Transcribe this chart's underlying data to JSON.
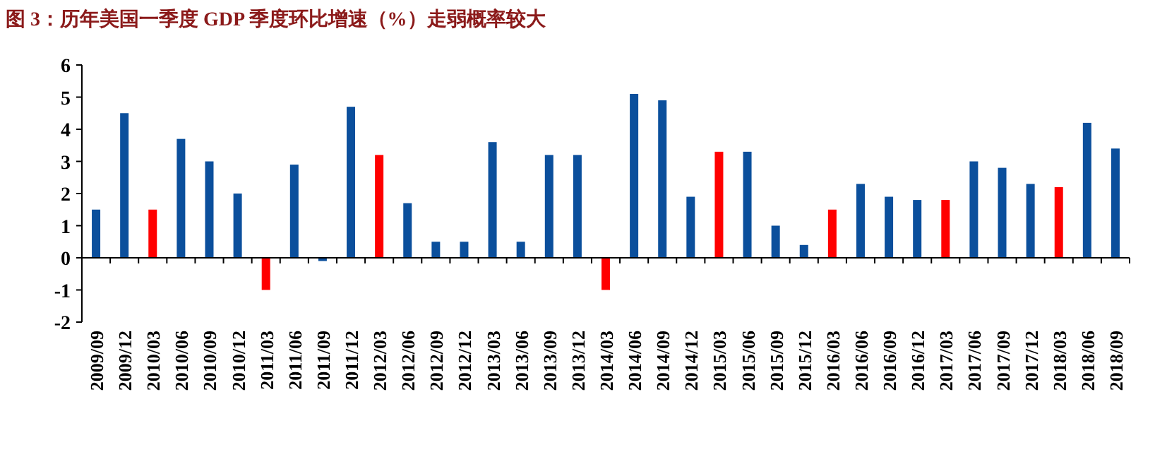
{
  "chart_data": {
    "type": "bar",
    "title": "图 3：历年美国一季度 GDP 季度环比增速（%）走弱概率较大",
    "categories": [
      "2009/09",
      "2009/12",
      "2010/03",
      "2010/06",
      "2010/09",
      "2010/12",
      "2011/03",
      "2011/06",
      "2011/09",
      "2011/12",
      "2012/03",
      "2012/06",
      "2012/09",
      "2012/12",
      "2013/03",
      "2013/06",
      "2013/09",
      "2013/12",
      "2014/03",
      "2014/06",
      "2014/09",
      "2014/12",
      "2015/03",
      "2015/06",
      "2015/09",
      "2015/12",
      "2016/03",
      "2016/06",
      "2016/09",
      "2016/12",
      "2017/03",
      "2017/06",
      "2017/09",
      "2017/12",
      "2018/03",
      "2018/06",
      "2018/09"
    ],
    "values": [
      1.5,
      4.5,
      1.5,
      3.7,
      3.0,
      2.0,
      -1.0,
      2.9,
      -0.1,
      4.7,
      3.2,
      1.7,
      0.5,
      0.5,
      3.6,
      0.5,
      3.2,
      3.2,
      -1.0,
      5.1,
      4.9,
      1.9,
      3.3,
      3.3,
      1.0,
      0.4,
      1.5,
      2.3,
      1.9,
      1.8,
      1.8,
      3.0,
      2.8,
      2.3,
      2.2,
      4.2,
      3.4
    ],
    "colors": [
      "#0b4f9c",
      "#0b4f9c",
      "#ff0000",
      "#0b4f9c",
      "#0b4f9c",
      "#0b4f9c",
      "#ff0000",
      "#0b4f9c",
      "#0b4f9c",
      "#0b4f9c",
      "#ff0000",
      "#0b4f9c",
      "#0b4f9c",
      "#0b4f9c",
      "#0b4f9c",
      "#0b4f9c",
      "#0b4f9c",
      "#0b4f9c",
      "#ff0000",
      "#0b4f9c",
      "#0b4f9c",
      "#0b4f9c",
      "#ff0000",
      "#0b4f9c",
      "#0b4f9c",
      "#0b4f9c",
      "#ff0000",
      "#0b4f9c",
      "#0b4f9c",
      "#0b4f9c",
      "#ff0000",
      "#0b4f9c",
      "#0b4f9c",
      "#0b4f9c",
      "#ff0000",
      "#0b4f9c",
      "#0b4f9c"
    ],
    "ylim": [
      -2,
      6
    ],
    "yticks": [
      -2,
      -1,
      0,
      1,
      2,
      3,
      4,
      5,
      6
    ]
  }
}
